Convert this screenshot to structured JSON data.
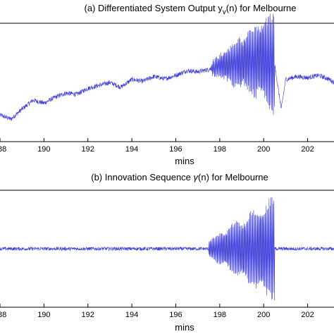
{
  "chart_data": [
    {
      "type": "line",
      "title": "(a) Differentiated System Output y",
      "title_sub": "v",
      "title_rest": "(n) for Melbourne",
      "xlabel": "mins",
      "ylabel": "",
      "xlim": [
        188,
        203.2
      ],
      "ylim": [
        -1,
        1
      ],
      "x_ticks": [
        "188",
        "190",
        "192",
        "194",
        "196",
        "198",
        "200",
        "202"
      ],
      "line_color": "#3a3ad8",
      "grid": false,
      "series": [
        {
          "x": [
            188.0,
            188.5,
            189.0,
            189.5,
            190.0,
            190.5,
            191.0,
            191.5,
            192.0,
            192.5,
            193.0,
            193.5,
            194.0,
            194.5,
            195.0,
            195.5,
            196.0,
            196.5,
            197.0,
            197.5,
            198.0,
            198.5,
            199.0,
            199.5,
            200.0,
            200.5,
            200.8,
            201.0,
            201.5,
            202.0,
            202.5,
            203.0,
            203.2
          ],
          "y": [
            -0.55,
            -0.62,
            -0.45,
            -0.3,
            -0.35,
            -0.25,
            -0.18,
            -0.2,
            -0.1,
            -0.05,
            0.0,
            -0.08,
            0.05,
            0.02,
            0.1,
            0.06,
            0.12,
            0.2,
            0.18,
            0.22,
            0.28,
            0.3,
            0.34,
            0.38,
            0.4,
            0.3,
            -0.45,
            0.05,
            0.1,
            0.08,
            0.12,
            0.05,
            0.0
          ],
          "oscillation": {
            "x_start": 197.6,
            "x_end": 200.5,
            "amp_start": 0.1,
            "amp_end": 0.9
          }
        }
      ]
    },
    {
      "type": "line",
      "title": "(b) Innovation Sequence ",
      "title_symbol": "γ",
      "title_rest": "(n) for Melbourne",
      "xlabel": "mins",
      "ylabel": "",
      "xlim": [
        188,
        203.2
      ],
      "ylim": [
        -1,
        1
      ],
      "x_ticks": [
        "188",
        "190",
        "192",
        "194",
        "196",
        "198",
        "200",
        "202"
      ],
      "line_color": "#3a3ad8",
      "grid": false,
      "series": [
        {
          "x": [
            188.0,
            197.5
          ],
          "y": [
            0.0,
            0.0
          ],
          "noise_amp": 0.03,
          "oscillation": {
            "x_start": 197.5,
            "x_end": 200.5,
            "amp_start": 0.15,
            "amp_end": 0.95
          }
        }
      ]
    }
  ]
}
